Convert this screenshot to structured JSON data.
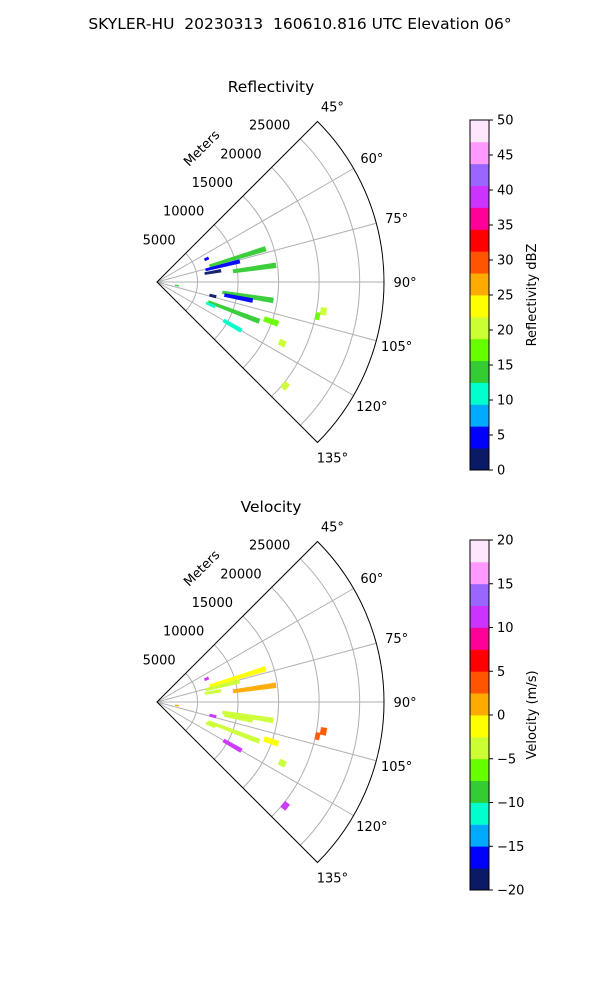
{
  "title": "SKYLER-HU  20230313  160610.816 UTC Elevation 06°",
  "chart_data": [
    {
      "type": "heatmap",
      "title": "Reflectivity",
      "range_label": "Meters",
      "range_ticks": [
        5000,
        10000,
        15000,
        20000,
        25000
      ],
      "range_max": 28000,
      "azimuth_ticks": [
        "45°",
        "60°",
        "75°",
        "90°",
        "105°",
        "120°",
        "135°"
      ],
      "azimuth_values": [
        45,
        60,
        75,
        90,
        105,
        120,
        135
      ],
      "azimuth_range": [
        45,
        135
      ],
      "colorbar": {
        "label": "Reflectivity dBZ",
        "min": 0,
        "max": 50,
        "ticks": [
          0,
          5,
          10,
          15,
          20,
          25,
          30,
          35,
          40,
          45,
          50
        ],
        "tick_labels": [
          "0",
          "5",
          "10",
          "15",
          "20",
          "25",
          "30",
          "35",
          "40",
          "45",
          "50"
        ]
      },
      "echoes": [
        {
          "az": 73,
          "r_start": 6800,
          "r_end": 14000,
          "value": 13
        },
        {
          "az": 76,
          "r_start": 6200,
          "r_end": 10500,
          "value": 6
        },
        {
          "az": 80,
          "r_start": 6000,
          "r_end": 8000,
          "value": 3
        },
        {
          "az": 82,
          "r_start": 9500,
          "r_end": 14800,
          "value": 14
        },
        {
          "az": 65,
          "r_start": 6500,
          "r_end": 7000,
          "value": 4
        },
        {
          "az": 99,
          "r_start": 8200,
          "r_end": 14500,
          "value": 14
        },
        {
          "az": 101,
          "r_start": 8500,
          "r_end": 12000,
          "value": 4
        },
        {
          "az": 104,
          "r_start": 6700,
          "r_end": 7500,
          "value": 3
        },
        {
          "az": 100,
          "r_start": 20500,
          "r_end": 21200,
          "value": 20
        },
        {
          "az": 102,
          "r_start": 20000,
          "r_end": 20500,
          "value": 16
        },
        {
          "az": 111,
          "r_start": 6800,
          "r_end": 13500,
          "value": 13
        },
        {
          "az": 113,
          "r_start": 6600,
          "r_end": 7800,
          "value": 11
        },
        {
          "az": 109,
          "r_start": 14000,
          "r_end": 15800,
          "value": 16
        },
        {
          "az": 116,
          "r_start": 16800,
          "r_end": 17600,
          "value": 19
        },
        {
          "az": 120,
          "r_start": 9500,
          "r_end": 12000,
          "value": 10
        },
        {
          "az": 129,
          "r_start": 20000,
          "r_end": 20700,
          "value": 21
        },
        {
          "az": 100,
          "r_start": 2300,
          "r_end": 2700,
          "value": 14
        }
      ]
    },
    {
      "type": "heatmap",
      "title": "Velocity",
      "range_label": "Meters",
      "range_ticks": [
        5000,
        10000,
        15000,
        20000,
        25000
      ],
      "range_max": 28000,
      "azimuth_ticks": [
        "45°",
        "60°",
        "75°",
        "90°",
        "105°",
        "120°",
        "135°"
      ],
      "azimuth_values": [
        45,
        60,
        75,
        90,
        105,
        120,
        135
      ],
      "azimuth_range": [
        45,
        135
      ],
      "colorbar": {
        "label": "Velocity (m/s)",
        "min": -20,
        "max": 20,
        "ticks": [
          -20,
          -15,
          -10,
          -5,
          0,
          5,
          10,
          15,
          20
        ],
        "tick_labels": [
          "−20",
          "−15",
          "−10",
          "−5",
          "0",
          "5",
          "10",
          "15",
          "20"
        ]
      },
      "echoes": [
        {
          "az": 73,
          "r_start": 6800,
          "r_end": 14000,
          "value": -2
        },
        {
          "az": 76,
          "r_start": 6200,
          "r_end": 10500,
          "value": -4
        },
        {
          "az": 80,
          "r_start": 6000,
          "r_end": 8000,
          "value": -3
        },
        {
          "az": 82,
          "r_start": 9500,
          "r_end": 14800,
          "value": 0
        },
        {
          "az": 65,
          "r_start": 6500,
          "r_end": 7000,
          "value": 10
        },
        {
          "az": 99,
          "r_start": 8200,
          "r_end": 14500,
          "value": -4
        },
        {
          "az": 101,
          "r_start": 8500,
          "r_end": 12000,
          "value": -3
        },
        {
          "az": 104,
          "r_start": 6700,
          "r_end": 7500,
          "value": 12
        },
        {
          "az": 100,
          "r_start": 20500,
          "r_end": 21200,
          "value": 4
        },
        {
          "az": 102,
          "r_start": 20000,
          "r_end": 20500,
          "value": 3
        },
        {
          "az": 111,
          "r_start": 6800,
          "r_end": 13500,
          "value": -4
        },
        {
          "az": 113,
          "r_start": 6600,
          "r_end": 7800,
          "value": -5
        },
        {
          "az": 109,
          "r_start": 14000,
          "r_end": 15800,
          "value": -1
        },
        {
          "az": 116,
          "r_start": 16800,
          "r_end": 17600,
          "value": -3
        },
        {
          "az": 120,
          "r_start": 9500,
          "r_end": 12000,
          "value": 12
        },
        {
          "az": 129,
          "r_start": 20000,
          "r_end": 20700,
          "value": 12
        },
        {
          "az": 100,
          "r_start": 2300,
          "r_end": 2700,
          "value": 1
        }
      ]
    }
  ],
  "colors": {
    "grid": "#b0b0b0",
    "axis": "#000000",
    "colormap": [
      "#0a1a66",
      "#0000ff",
      "#00aaff",
      "#00ffcc",
      "#33cc33",
      "#66ff00",
      "#ccff33",
      "#ffff00",
      "#ffaa00",
      "#ff5500",
      "#ff0000",
      "#ff0099",
      "#cc33ff",
      "#9966ff",
      "#ff99ff",
      "#ffe6ff"
    ]
  }
}
